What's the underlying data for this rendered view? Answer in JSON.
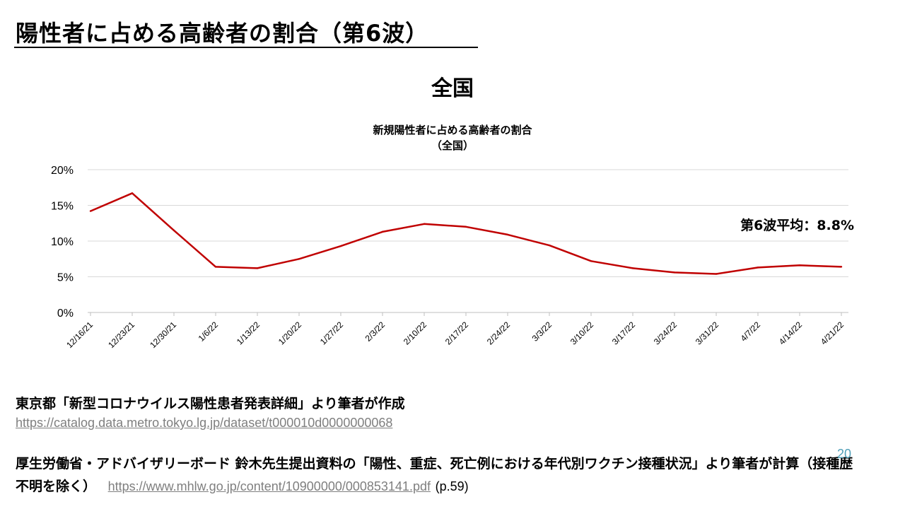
{
  "slide": {
    "title": "陽性者に占める高齢者の割合（第6波）",
    "region_title": "全国",
    "page_number": "20"
  },
  "sources": {
    "source1_text": "東京都「新型コロナウイルス陽性患者発表詳細」より筆者が作成",
    "source1_link": "https://catalog.data.metro.tokyo.lg.jp/dataset/t000010d0000000068",
    "source2_text": "厚生労働省・アドバイザリーボード 鈴木先生提出資料の「陽性、重症、死亡例における年代別ワクチン接種状況」より筆者が計算（接種歴不明を除く）",
    "source2_link": "https://www.mhlw.go.jp/content/10900000/000853141.pdf",
    "source2_page": "(p.59)"
  },
  "chart_data": {
    "type": "line",
    "title": "新規陽性者に占める高齢者の割合",
    "subtitle": "（全国）",
    "categories": [
      "12/16/21",
      "12/23/21",
      "12/30/21",
      "1/6/22",
      "1/13/22",
      "1/20/22",
      "1/27/22",
      "2/3/22",
      "2/10/22",
      "2/17/22",
      "2/24/22",
      "3/3/22",
      "3/10/22",
      "3/17/22",
      "3/24/22",
      "3/31/22",
      "4/7/22",
      "4/14/22",
      "4/21/22"
    ],
    "series": [
      {
        "values": [
          14.2,
          16.7,
          11.5,
          6.4,
          6.2,
          7.5,
          9.3,
          11.3,
          12.4,
          12.0,
          10.9,
          9.4,
          7.2,
          6.2,
          5.6,
          5.4,
          6.3,
          6.6,
          6.4
        ],
        "color": "#c00000"
      }
    ],
    "y_tick_labels": [
      "0%",
      "5%",
      "10%",
      "15%",
      "20%"
    ],
    "ylim": [
      0,
      20
    ],
    "grid": true,
    "annotation": "第6波平均：8.8%"
  }
}
